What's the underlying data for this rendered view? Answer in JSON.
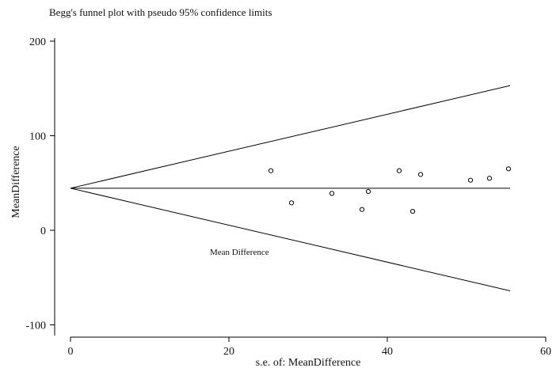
{
  "chart_data": {
    "type": "scatter",
    "title": "Begg's funnel plot with pseudo 95% confidence limits",
    "xlabel": "s.e. of: MeanDifference",
    "ylabel": "MeanDifference",
    "xlim": [
      0,
      60
    ],
    "ylim": [
      -100,
      210
    ],
    "x_ticks": [
      0,
      20,
      40,
      60
    ],
    "y_ticks": [
      -100,
      0,
      100,
      200
    ],
    "x_tick_labels": [
      "0",
      "20",
      "40",
      "60"
    ],
    "y_tick_labels": [
      "-100",
      "0",
      "100",
      "200"
    ],
    "grid": false,
    "annotation": "Mean Difference",
    "pooled_estimate": 44.5,
    "funnel": {
      "start": {
        "x": 0,
        "y": 44.5
      },
      "end_x": 55.5,
      "upper_end_y": 153,
      "lower_end_y": -64
    },
    "points": [
      {
        "x": 25.3,
        "y": 63
      },
      {
        "x": 27.9,
        "y": 29
      },
      {
        "x": 33.0,
        "y": 39
      },
      {
        "x": 36.8,
        "y": 22
      },
      {
        "x": 37.6,
        "y": 41
      },
      {
        "x": 41.5,
        "y": 63
      },
      {
        "x": 43.2,
        "y": 20
      },
      {
        "x": 44.2,
        "y": 59
      },
      {
        "x": 50.5,
        "y": 53
      },
      {
        "x": 52.9,
        "y": 55
      },
      {
        "x": 55.3,
        "y": 65
      }
    ]
  }
}
